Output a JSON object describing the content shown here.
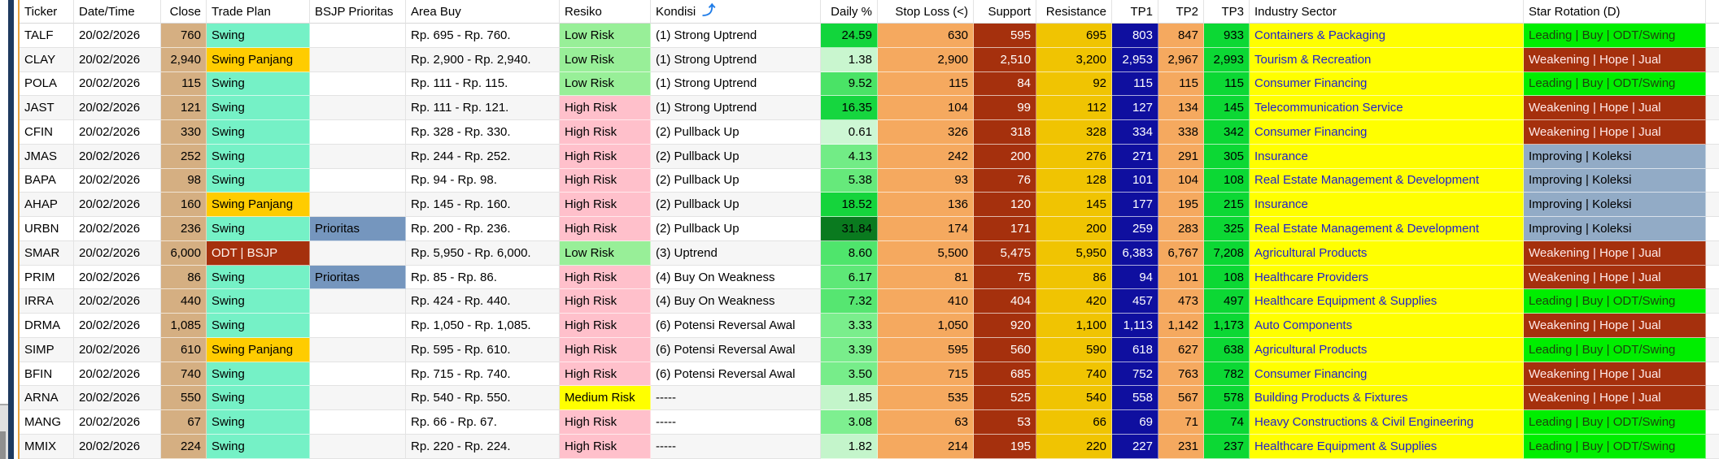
{
  "table": {
    "columns": [
      {
        "key": "ticker",
        "label": "Ticker",
        "align": "left"
      },
      {
        "key": "date",
        "label": "Date/Time",
        "align": "left"
      },
      {
        "key": "close",
        "label": "Close",
        "align": "right"
      },
      {
        "key": "plan",
        "label": "Trade Plan",
        "align": "left"
      },
      {
        "key": "bsjp",
        "label": "BSJP Prioritas",
        "align": "left"
      },
      {
        "key": "area",
        "label": "Area Buy",
        "align": "left"
      },
      {
        "key": "resiko",
        "label": "Resiko",
        "align": "left"
      },
      {
        "key": "kondisi",
        "label": "Kondisi",
        "align": "left"
      },
      {
        "key": "daily",
        "label": "Daily %",
        "align": "right"
      },
      {
        "key": "stop_loss",
        "label": "Stop Loss (<)",
        "align": "right"
      },
      {
        "key": "support",
        "label": "Support",
        "align": "right"
      },
      {
        "key": "resistance",
        "label": "Resistance",
        "align": "right"
      },
      {
        "key": "tp1",
        "label": "TP1",
        "align": "right"
      },
      {
        "key": "tp2",
        "label": "TP2",
        "align": "right"
      },
      {
        "key": "tp3",
        "label": "TP3",
        "align": "right"
      },
      {
        "key": "industry",
        "label": "Industry Sector",
        "align": "left"
      },
      {
        "key": "star",
        "label": "Star Rotation (D)",
        "align": "left"
      }
    ],
    "header_icon": {
      "glyph": "⤴"
    },
    "rows": [
      {
        "ticker": "TALF",
        "date": "20/02/2026",
        "close": "760",
        "plan": "Swing",
        "bsjp": "",
        "area": "Rp. 695 - Rp. 760.",
        "resiko": "Low Risk",
        "kondisi": "(1) Strong Uptrend",
        "daily": "24.59",
        "daily_color": "#12d53c",
        "stop_loss": "630",
        "support": "595",
        "resistance": "695",
        "tp1": "803",
        "tp2": "847",
        "tp3": "933",
        "industry": "Containers & Packaging",
        "star": "Leading | Buy | ODT/Swing"
      },
      {
        "ticker": "CLAY",
        "date": "20/02/2026",
        "close": "2,940",
        "plan": "Swing Panjang",
        "bsjp": "",
        "area": "Rp. 2,900 - Rp. 2,940.",
        "resiko": "Low Risk",
        "kondisi": "(1) Strong Uptrend",
        "daily": "1.38",
        "daily_color": "#c9f6cf",
        "stop_loss": "2,900",
        "support": "2,510",
        "resistance": "3,200",
        "tp1": "2,953",
        "tp2": "2,967",
        "tp3": "2,993",
        "industry": "Tourism & Recreation",
        "star": "Weakening | Hope | Jual"
      },
      {
        "ticker": "POLA",
        "date": "20/02/2026",
        "close": "115",
        "plan": "Swing",
        "bsjp": "",
        "area": "Rp. 111 - Rp. 115.",
        "resiko": "Low Risk",
        "kondisi": "(1) Strong Uptrend",
        "daily": "9.52",
        "daily_color": "#4ae366",
        "stop_loss": "115",
        "support": "84",
        "resistance": "92",
        "tp1": "115",
        "tp2": "115",
        "tp3": "115",
        "industry": "Consumer Financing",
        "star": "Leading | Buy | ODT/Swing"
      },
      {
        "ticker": "JAST",
        "date": "20/02/2026",
        "close": "121",
        "plan": "Swing",
        "bsjp": "",
        "area": "Rp. 111 - Rp. 121.",
        "resiko": "High Risk",
        "kondisi": "(1) Strong Uptrend",
        "daily": "16.35",
        "daily_color": "#16d63f",
        "stop_loss": "104",
        "support": "99",
        "resistance": "112",
        "tp1": "127",
        "tp2": "134",
        "tp3": "145",
        "industry": "Telecommunication Service",
        "star": "Weakening | Hope | Jual"
      },
      {
        "ticker": "CFIN",
        "date": "20/02/2026",
        "close": "330",
        "plan": "Swing",
        "bsjp": "",
        "area": "Rp. 328 - Rp. 330.",
        "resiko": "High Risk",
        "kondisi": "(2) Pullback Up",
        "daily": "0.61",
        "daily_color": "#cdf7d4",
        "stop_loss": "326",
        "support": "318",
        "resistance": "328",
        "tp1": "334",
        "tp2": "338",
        "tp3": "342",
        "industry": "Consumer Financing",
        "star": "Weakening | Hope | Jual"
      },
      {
        "ticker": "JMAS",
        "date": "20/02/2026",
        "close": "252",
        "plan": "Swing",
        "bsjp": "",
        "area": "Rp. 244 - Rp. 252.",
        "resiko": "High Risk",
        "kondisi": "(2) Pullback Up",
        "daily": "4.13",
        "daily_color": "#72ec86",
        "stop_loss": "242",
        "support": "200",
        "resistance": "276",
        "tp1": "271",
        "tp2": "291",
        "tp3": "305",
        "industry": "Insurance",
        "star": "Improving | Koleksi"
      },
      {
        "ticker": "BAPA",
        "date": "20/02/2026",
        "close": "98",
        "plan": "Swing",
        "bsjp": "",
        "area": "Rp. 94 - Rp. 98.",
        "resiko": "High Risk",
        "kondisi": "(2) Pullback Up",
        "daily": "5.38",
        "daily_color": "#66e97b",
        "stop_loss": "93",
        "support": "76",
        "resistance": "128",
        "tp1": "101",
        "tp2": "104",
        "tp3": "108",
        "industry": "Real Estate Management & Development",
        "star": "Improving | Koleksi"
      },
      {
        "ticker": "AHAP",
        "date": "20/02/2026",
        "close": "160",
        "plan": "Swing Panjang",
        "bsjp": "",
        "area": "Rp. 145 - Rp. 160.",
        "resiko": "High Risk",
        "kondisi": "(2) Pullback Up",
        "daily": "18.52",
        "daily_color": "#15d43c",
        "stop_loss": "136",
        "support": "120",
        "resistance": "145",
        "tp1": "177",
        "tp2": "195",
        "tp3": "215",
        "industry": "Insurance",
        "star": "Improving | Koleksi"
      },
      {
        "ticker": "URBN",
        "date": "20/02/2026",
        "close": "236",
        "plan": "Swing",
        "bsjp": "Prioritas",
        "area": "Rp. 200 - Rp. 236.",
        "resiko": "High Risk",
        "kondisi": "(2) Pullback Up",
        "daily": "31.84",
        "daily_color": "#0a7a1f",
        "stop_loss": "174",
        "support": "171",
        "resistance": "200",
        "tp1": "259",
        "tp2": "283",
        "tp3": "325",
        "industry": "Real Estate Management & Development",
        "star": "Improving | Koleksi"
      },
      {
        "ticker": "SMAR",
        "date": "20/02/2026",
        "close": "6,000",
        "plan": "ODT | BSJP",
        "bsjp": "",
        "area": "Rp. 5,950 - Rp. 6,000.",
        "resiko": "Low Risk",
        "kondisi": "(3) Uptrend",
        "daily": "8.60",
        "daily_color": "#4fe56c",
        "stop_loss": "5,500",
        "support": "5,475",
        "resistance": "5,950",
        "tp1": "6,383",
        "tp2": "6,767",
        "tp3": "7,208",
        "industry": "Agricultural Products",
        "star": "Weakening | Hope | Jual"
      },
      {
        "ticker": "PRIM",
        "date": "20/02/2026",
        "close": "86",
        "plan": "Swing",
        "bsjp": "Prioritas",
        "area": "Rp. 85 - Rp. 86.",
        "resiko": "High Risk",
        "kondisi": "(4) Buy On Weakness",
        "daily": "6.17",
        "daily_color": "#5ee877",
        "stop_loss": "81",
        "support": "75",
        "resistance": "86",
        "tp1": "94",
        "tp2": "101",
        "tp3": "108",
        "industry": "Healthcare Providers",
        "star": "Weakening | Hope | Jual"
      },
      {
        "ticker": "IRRA",
        "date": "20/02/2026",
        "close": "440",
        "plan": "Swing",
        "bsjp": "",
        "area": "Rp. 424 - Rp. 440.",
        "resiko": "High Risk",
        "kondisi": "(4) Buy On Weakness",
        "daily": "7.32",
        "daily_color": "#56e671",
        "stop_loss": "410",
        "support": "404",
        "resistance": "420",
        "tp1": "457",
        "tp2": "473",
        "tp3": "497",
        "industry": "Healthcare Equipment & Supplies",
        "star": "Leading | Buy | ODT/Swing"
      },
      {
        "ticker": "DRMA",
        "date": "20/02/2026",
        "close": "1,085",
        "plan": "Swing",
        "bsjp": "",
        "area": "Rp. 1,050 - Rp. 1,085.",
        "resiko": "High Risk",
        "kondisi": "(6) Potensi Reversal Awal",
        "daily": "3.33",
        "daily_color": "#7aee8c",
        "stop_loss": "1,050",
        "support": "920",
        "resistance": "1,100",
        "tp1": "1,113",
        "tp2": "1,142",
        "tp3": "1,173",
        "industry": "Auto Components",
        "star": "Weakening | Hope | Jual"
      },
      {
        "ticker": "SIMP",
        "date": "20/02/2026",
        "close": "610",
        "plan": "Swing Panjang",
        "bsjp": "",
        "area": "Rp. 595 - Rp. 610.",
        "resiko": "High Risk",
        "kondisi": "(6) Potensi Reversal Awal",
        "daily": "3.39",
        "daily_color": "#79ed8b",
        "stop_loss": "595",
        "support": "560",
        "resistance": "590",
        "tp1": "618",
        "tp2": "627",
        "tp3": "638",
        "industry": "Agricultural Products",
        "star": "Leading | Buy | ODT/Swing"
      },
      {
        "ticker": "BFIN",
        "date": "20/02/2026",
        "close": "740",
        "plan": "Swing",
        "bsjp": "",
        "area": "Rp. 715 - Rp. 740.",
        "resiko": "High Risk",
        "kondisi": "(6) Potensi Reversal Awal",
        "daily": "3.50",
        "daily_color": "#77ed8a",
        "stop_loss": "715",
        "support": "685",
        "resistance": "740",
        "tp1": "752",
        "tp2": "763",
        "tp3": "782",
        "industry": "Consumer Financing",
        "star": "Weakening | Hope | Jual"
      },
      {
        "ticker": "ARNA",
        "date": "20/02/2026",
        "close": "550",
        "plan": "Swing",
        "bsjp": "",
        "area": "Rp. 540 - Rp. 550.",
        "resiko": "Medium Risk",
        "kondisi": "-----",
        "daily": "1.85",
        "daily_color": "#c3f5ca",
        "stop_loss": "535",
        "support": "525",
        "resistance": "540",
        "tp1": "558",
        "tp2": "567",
        "tp3": "578",
        "industry": "Building Products & Fixtures",
        "star": "Weakening | Hope | Jual"
      },
      {
        "ticker": "MANG",
        "date": "20/02/2026",
        "close": "67",
        "plan": "Swing",
        "bsjp": "",
        "area": "Rp. 66 - Rp. 67.",
        "resiko": "High Risk",
        "kondisi": "-----",
        "daily": "3.08",
        "daily_color": "#7eef90",
        "stop_loss": "63",
        "support": "53",
        "resistance": "66",
        "tp1": "69",
        "tp2": "71",
        "tp3": "74",
        "industry": "Heavy Constructions & Civil Engineering",
        "star": "Leading | Buy | ODT/Swing"
      },
      {
        "ticker": "MMIX",
        "date": "20/02/2026",
        "close": "224",
        "plan": "Swing",
        "bsjp": "",
        "area": "Rp. 220 - Rp. 224.",
        "resiko": "High Risk",
        "kondisi": "-----",
        "daily": "1.82",
        "daily_color": "#c4f5cb",
        "stop_loss": "214",
        "support": "195",
        "resistance": "220",
        "tp1": "227",
        "tp2": "231",
        "tp3": "237",
        "industry": "Healthcare Equipment & Supplies",
        "star": "Leading | Buy | ODT/Swing"
      }
    ]
  },
  "colors": {
    "accent_navy": "#1e3a5f",
    "sheet_left_border": "#e8a33d",
    "close_bg": "#d5af82",
    "plan": {
      "Swing": {
        "bg": "#75f1c6",
        "fg": "#000000"
      },
      "Swing Panjang": {
        "bg": "#ffcc00",
        "fg": "#000000"
      },
      "ODT | BSJP": {
        "bg": "#a5300d",
        "fg": "#fff5f0"
      }
    },
    "bsjp": {
      "Prioritas": {
        "bg": "#7596be",
        "fg": "#000000"
      }
    },
    "resiko": {
      "Low Risk": {
        "bg": "#98ef98",
        "fg": "#000000"
      },
      "High Risk": {
        "bg": "#ffc0cb",
        "fg": "#000000"
      },
      "Medium Risk": {
        "bg": "#ffff00",
        "fg": "#000000"
      }
    },
    "stop_loss_bg": "#f5a95f",
    "support": {
      "bg": "#a5300d",
      "fg": "#ffffff"
    },
    "resistance_bg": "#f0c402",
    "tp1": {
      "bg": "#0f0f9f",
      "fg": "#ffffff"
    },
    "tp2_bg": "#f5a95f",
    "tp3_bg": "#0cd834",
    "industry": {
      "bg": "#ffff00",
      "fg": "#2222cc"
    },
    "star": {
      "Leading | Buy | ODT/Swing": {
        "bg": "#00ee00",
        "fg": "#1c430d"
      },
      "Weakening | Hope | Jual": {
        "bg": "#a5300d",
        "fg": "#ffe9e9"
      },
      "Improving | Koleksi": {
        "bg": "#92abc6",
        "fg": "#000000"
      }
    }
  }
}
